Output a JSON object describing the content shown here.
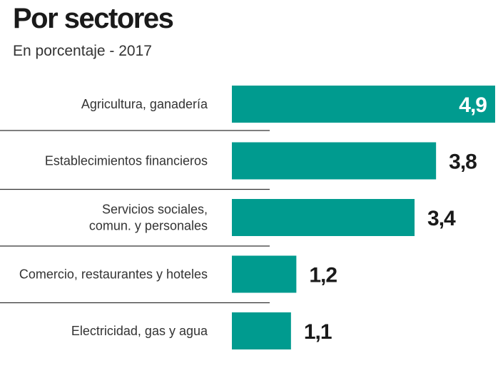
{
  "chart_data": {
    "type": "bar",
    "orientation": "horizontal",
    "title": "Por sectores",
    "subtitle": "En porcentaje - 2017",
    "categories": [
      [
        "Agricultura, ganadería"
      ],
      [
        "Establecimientos financieros"
      ],
      [
        "Servicios sociales,",
        "comun. y personales"
      ],
      [
        "Comercio, restaurantes y hoteles"
      ],
      [
        "Electricidad, gas y agua"
      ]
    ],
    "values": [
      4.9,
      3.8,
      3.4,
      1.2,
      1.1
    ],
    "value_labels": [
      "4,9",
      "3,8",
      "3,4",
      "1,2",
      "1,1"
    ],
    "xlim": [
      0,
      4.9
    ],
    "bar_color": "#009b8f",
    "grid": false,
    "legend": "none"
  }
}
